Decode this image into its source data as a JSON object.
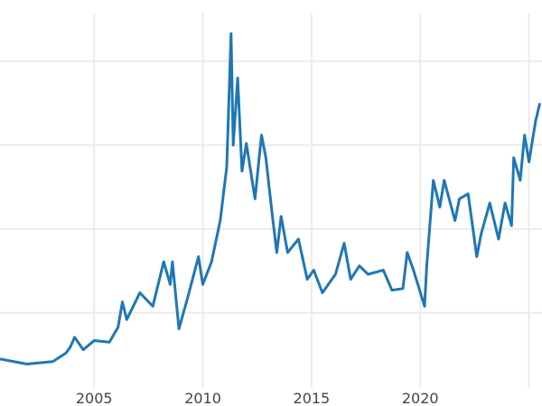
{
  "chart_data": {
    "type": "line",
    "title": "",
    "xlabel": "",
    "ylabel": "",
    "xlim": [
      2000.67,
      2025.6
    ],
    "ylim": [
      -1.1,
      47.3
    ],
    "grid": true,
    "x_ticks": [
      2005,
      2010,
      2015,
      2020,
      2025
    ],
    "x_tick_labels": [
      "2005",
      "2010",
      "2015",
      "2020",
      ""
    ],
    "y_gridlines": [
      10,
      20,
      30,
      40
    ],
    "line_color": "#1f77b4",
    "series": [
      {
        "x": [
          2000.67,
          2001.9,
          2003.1,
          2003.7,
          2003.9,
          2004.1,
          2004.5,
          2005.0,
          2005.7,
          2006.1,
          2006.3,
          2006.5,
          2007.1,
          2007.7,
          2008.2,
          2008.5,
          2008.6,
          2008.9,
          2009.3,
          2009.8,
          2010.0,
          2010.4,
          2010.8,
          2011.1,
          2011.3,
          2011.4,
          2011.6,
          2011.8,
          2012.0,
          2012.4,
          2012.7,
          2012.9,
          2013.2,
          2013.4,
          2013.6,
          2013.9,
          2014.4,
          2014.8,
          2015.1,
          2015.5,
          2016.1,
          2016.5,
          2016.8,
          2017.2,
          2017.6,
          2018.3,
          2018.7,
          2019.2,
          2019.4,
          2019.7,
          2020.2,
          2020.3,
          2020.6,
          2020.9,
          2021.1,
          2021.6,
          2021.8,
          2022.2,
          2022.6,
          2022.8,
          2023.2,
          2023.6,
          2023.9,
          2024.2,
          2024.3,
          2024.6,
          2024.8,
          2025.0,
          2025.3,
          2025.5
        ],
        "y": [
          4.5,
          3.9,
          4.2,
          5.2,
          5.9,
          7.1,
          5.6,
          6.7,
          6.5,
          8.3,
          11.3,
          9.2,
          12.4,
          10.8,
          16.1,
          13.4,
          16.1,
          8.1,
          11.8,
          16.7,
          13.4,
          16.1,
          21.0,
          27.4,
          43.3,
          30.0,
          38.0,
          26.9,
          30.2,
          23.6,
          31.2,
          28.5,
          21.5,
          17.2,
          21.5,
          17.2,
          18.8,
          14.0,
          15.1,
          12.4,
          14.6,
          18.3,
          14.0,
          15.6,
          14.6,
          15.1,
          12.7,
          12.9,
          17.2,
          15.0,
          10.8,
          15.6,
          25.8,
          22.6,
          25.8,
          21.0,
          23.6,
          24.2,
          16.7,
          19.4,
          23.1,
          18.8,
          23.1,
          20.4,
          28.5,
          25.8,
          31.2,
          28.0,
          32.8,
          35.0
        ]
      }
    ]
  }
}
